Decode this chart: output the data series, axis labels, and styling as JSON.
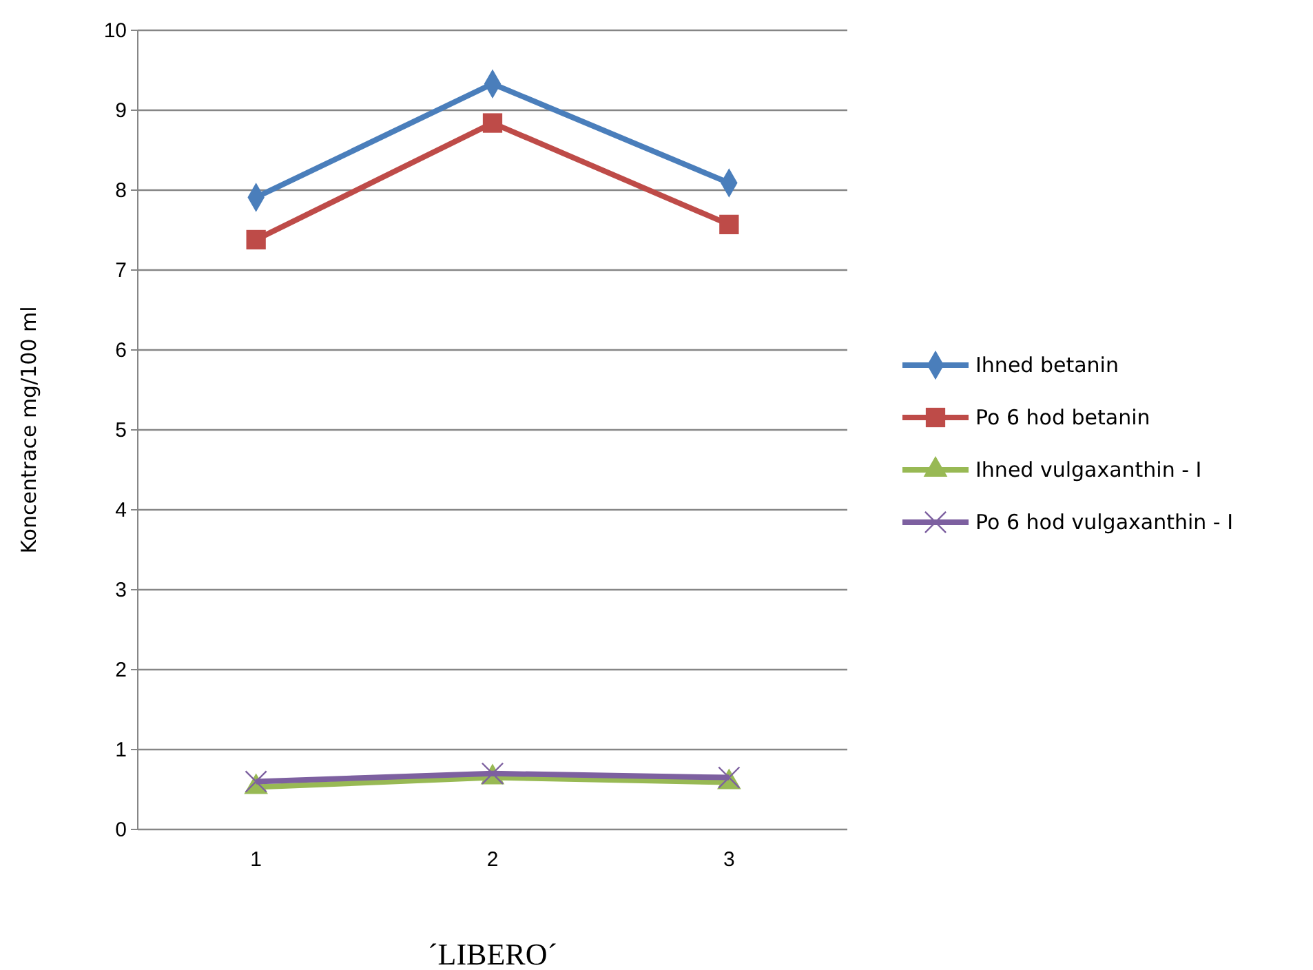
{
  "chart_data": {
    "type": "line",
    "xlabel": "´LIBERO´",
    "ylabel": "Koncentrace mg/100 ml",
    "categories": [
      "1",
      "2",
      "3"
    ],
    "ylim": [
      0,
      10
    ],
    "yticks": [
      0,
      1,
      2,
      3,
      4,
      5,
      6,
      7,
      8,
      9,
      10
    ],
    "grid": "y",
    "legend": "right",
    "series": [
      {
        "name": "Ihned betanin",
        "color": "#4a7ebb",
        "marker": "diamond",
        "values": [
          7.91,
          9.33,
          8.09
        ]
      },
      {
        "name": "Po 6 hod betanin",
        "color": "#be4b48",
        "marker": "square",
        "values": [
          7.38,
          8.84,
          7.57
        ]
      },
      {
        "name": "Ihned vulgaxanthin - I",
        "color": "#98b954",
        "marker": "triangle",
        "values": [
          0.53,
          0.65,
          0.59
        ]
      },
      {
        "name": "Po 6 hod vulgaxanthin - I",
        "color": "#7d60a0",
        "marker": "cross",
        "values": [
          0.6,
          0.7,
          0.65
        ]
      }
    ]
  }
}
